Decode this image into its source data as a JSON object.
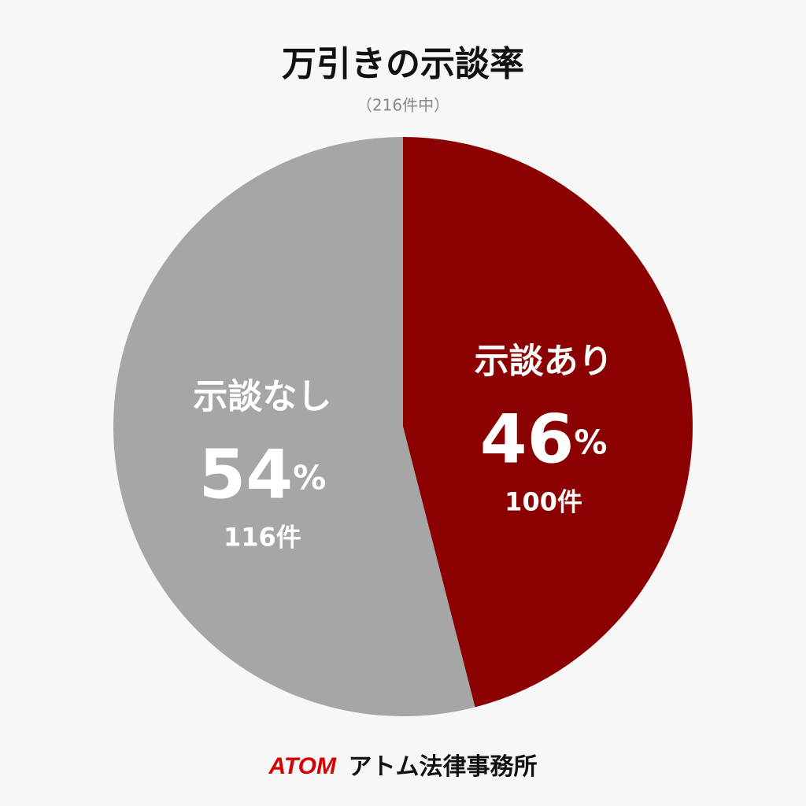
{
  "chart_data": {
    "type": "pie",
    "title": "万引きの示談率",
    "subtitle": "（216件中）",
    "categories": [
      "示談あり",
      "示談なし"
    ],
    "values": [
      46,
      54
    ],
    "value_labels": [
      "46%",
      "54%"
    ],
    "counts": [
      100,
      116
    ],
    "count_labels": [
      "100件",
      "116件"
    ],
    "colors": [
      "#8b0000",
      "#a6a6a6"
    ],
    "footer": {
      "brand": "ATOM",
      "name": "アトム法律事務所"
    }
  }
}
